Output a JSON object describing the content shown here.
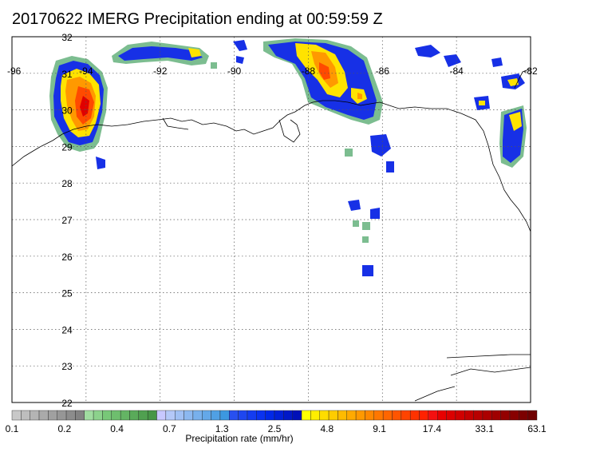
{
  "title": "20170622 IMERG Precipitation ending at 00:59:59 Z",
  "map": {
    "lon_range": [
      -96,
      -82
    ],
    "lat_range": [
      22,
      32
    ],
    "lon_ticks": [
      "-96",
      "-94",
      "-92",
      "-90",
      "-88",
      "-86",
      "-84",
      "-82"
    ],
    "lat_ticks": [
      "32",
      "31",
      "30",
      "29",
      "28",
      "27",
      "26",
      "25",
      "24",
      "23",
      "22"
    ],
    "gridlines": true,
    "coastline_color": "#000000"
  },
  "colorbar": {
    "label": "Precipitation rate (mm/hr)",
    "tick_labels": [
      "0.1",
      "0.2",
      "0.4",
      "0.7",
      "1.3",
      "2.5",
      "4.8",
      "9.1",
      "17.4",
      "33.1",
      "63.1"
    ],
    "colors": [
      "#c8c8c8",
      "#bebebe",
      "#b4b4b4",
      "#aaaaaa",
      "#a0a0a0",
      "#969696",
      "#8c8c8c",
      "#828282",
      "#a0dca0",
      "#8cd28c",
      "#78c878",
      "#6ebe6e",
      "#64b464",
      "#5aaa5a",
      "#50a050",
      "#469646",
      "#c8c8ff",
      "#b4c8f8",
      "#a0c0f4",
      "#8cb8f0",
      "#78b0ec",
      "#64a8e8",
      "#50a0e4",
      "#3c98e0",
      "#2850f0",
      "#1e46f0",
      "#143cf0",
      "#0a32f0",
      "#0028e8",
      "#0020d8",
      "#0018c8",
      "#0010b8",
      "#ffff00",
      "#ffee00",
      "#ffdd00",
      "#ffcc00",
      "#ffbb00",
      "#ffaa00",
      "#ff9900",
      "#ff8800",
      "#ff7700",
      "#ff6600",
      "#ff5500",
      "#ff4400",
      "#ff3300",
      "#ff2200",
      "#f41010",
      "#e80000",
      "#dc0000",
      "#d00000",
      "#c40000",
      "#b80000",
      "#ac0000",
      "#a00000",
      "#940000",
      "#880000",
      "#7c0000",
      "#700000"
    ]
  },
  "precip_cells": [
    {
      "lon": -94.2,
      "lat": 30.2,
      "level": 6
    },
    {
      "lon": -94.1,
      "lat": 29.8,
      "level": 7
    },
    {
      "lon": -94.6,
      "lat": 30.4,
      "level": 5
    },
    {
      "lon": -87.8,
      "lat": 31.2,
      "level": 6
    },
    {
      "lon": -87.6,
      "lat": 30.6,
      "level": 5
    },
    {
      "lon": -86.8,
      "lat": 30.4,
      "level": 4
    },
    {
      "lon": -82.2,
      "lat": 30.0,
      "level": 5
    },
    {
      "lon": -82.1,
      "lat": 29.4,
      "level": 3
    },
    {
      "lon": -86.3,
      "lat": 29.1,
      "level": 3
    },
    {
      "lon": -86.6,
      "lat": 25.5,
      "level": 2
    },
    {
      "lon": -86.4,
      "lat": 27.2,
      "level": 2
    },
    {
      "lon": -91.0,
      "lat": 31.6,
      "level": 2
    },
    {
      "lon": -93.6,
      "lat": 31.6,
      "level": 2
    }
  ]
}
